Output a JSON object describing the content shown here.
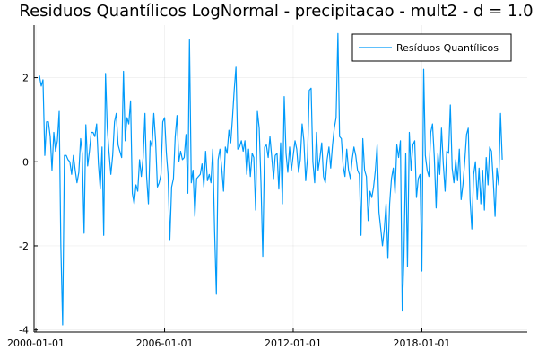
{
  "chart_data": {
    "type": "line",
    "title": "Residuos Quantílicos LogNormal - precipitacao - mult2 - d = 1.0",
    "xlabel": "",
    "ylabel": "",
    "x_start": "2000-03-01",
    "x_ticks": [
      "2000-01-01",
      "2006-01-01",
      "2012-01-01",
      "2018-01-01"
    ],
    "y_ticks": [
      -4,
      -2,
      0,
      2
    ],
    "xlim": [
      "1999-12-01",
      "2022-12-01"
    ],
    "ylim": [
      -4.05,
      3.25
    ],
    "grid": true,
    "legend_position": "top-right",
    "series": [
      {
        "name": "Resíduos Quantílicos",
        "color": "#009AFA",
        "values": [
          2.05,
          1.8,
          1.95,
          0.15,
          0.95,
          0.95,
          0.6,
          -0.2,
          0.7,
          0.25,
          0.5,
          1.2,
          -2.0,
          -3.88,
          0.15,
          0.15,
          0.05,
          0.0,
          -0.3,
          0.15,
          -0.2,
          -0.5,
          -0.25,
          0.55,
          0.2,
          -1.7,
          0.88,
          -0.1,
          0.25,
          0.7,
          0.7,
          0.6,
          0.9,
          -0.05,
          -0.65,
          0.35,
          -1.75,
          2.1,
          0.8,
          0.2,
          -0.3,
          0.15,
          0.95,
          1.15,
          0.4,
          0.25,
          0.1,
          2.15,
          0.5,
          1.05,
          0.9,
          1.45,
          -0.75,
          -1.0,
          -0.55,
          -0.7,
          0.05,
          -0.35,
          0.1,
          1.15,
          -0.35,
          -1.0,
          0.5,
          0.35,
          1.15,
          0.5,
          -0.6,
          -0.5,
          -0.3,
          0.95,
          1.05,
          0.2,
          -0.3,
          -1.85,
          -0.6,
          -0.4,
          0.6,
          1.1,
          0.0,
          0.25,
          0.05,
          0.1,
          0.65,
          -0.75,
          2.9,
          -0.5,
          -0.2,
          -1.3,
          -0.4,
          -0.35,
          -0.3,
          -0.05,
          -0.6,
          0.25,
          -0.45,
          -0.3,
          -0.5,
          0.3,
          -1.6,
          -3.15,
          0.05,
          0.3,
          -0.15,
          -0.7,
          0.35,
          0.2,
          0.75,
          0.45,
          1.0,
          1.7,
          2.25,
          0.3,
          0.35,
          0.5,
          0.25,
          0.5,
          -0.3,
          0.3,
          -0.35,
          0.2,
          0.1,
          -1.15,
          1.2,
          0.8,
          -0.5,
          -2.25,
          0.35,
          0.4,
          0.1,
          0.6,
          0.1,
          -0.4,
          0.15,
          0.2,
          -0.65,
          0.45,
          -1.0,
          1.55,
          0.2,
          -0.25,
          0.35,
          -0.2,
          0.15,
          0.5,
          0.3,
          -0.25,
          0.05,
          0.9,
          0.5,
          -0.45,
          0.1,
          1.7,
          1.75,
          0.0,
          -0.5,
          0.7,
          -0.2,
          0.1,
          0.45,
          -0.35,
          -0.5,
          0.05,
          0.35,
          -0.15,
          0.4,
          0.8,
          1.05,
          3.05,
          0.6,
          0.55,
          -0.1,
          -0.35,
          0.3,
          -0.2,
          -0.4,
          0.05,
          0.35,
          0.15,
          -0.2,
          -0.3,
          -1.75,
          0.55,
          -0.2,
          -0.35,
          -1.4,
          -0.7,
          -0.85,
          -0.6,
          -0.2,
          0.4,
          -1.2,
          -1.6,
          -2.0,
          -1.6,
          -1.0,
          -2.3,
          -1.0,
          -0.4,
          -0.15,
          -0.75,
          0.4,
          0.1,
          0.5,
          -3.55,
          -2.3,
          0.2,
          -2.5,
          0.7,
          -0.2,
          0.4,
          0.5,
          -0.85,
          -0.4,
          -0.3,
          -2.6,
          2.2,
          0.15,
          -0.2,
          -0.35,
          0.7,
          0.9,
          0.1,
          -1.1,
          0.2,
          -0.3,
          0.8,
          -0.05,
          -0.7,
          0.25,
          0.2,
          1.35,
          -0.15,
          -0.5,
          0.05,
          -0.45,
          0.3,
          -0.9,
          -0.55,
          0.0,
          0.65,
          0.8,
          -0.9,
          -1.6,
          -0.3,
          0.0,
          -0.9,
          -0.15,
          -1.0,
          -0.2,
          -1.15,
          0.1,
          -0.55,
          0.35,
          0.25,
          -0.45,
          -1.3,
          -0.15,
          -0.55,
          1.15,
          0.05
        ]
      }
    ]
  }
}
